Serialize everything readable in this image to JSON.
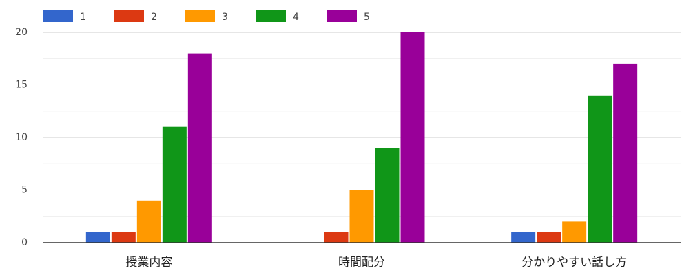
{
  "chart_data": {
    "type": "bar",
    "title": "",
    "xlabel": "",
    "ylabel": "",
    "categories": [
      "授業内容",
      "時間配分",
      "分かりやすい話し方"
    ],
    "series": [
      {
        "name": "1",
        "color": "#3366cc",
        "values": [
          1,
          0,
          1
        ]
      },
      {
        "name": "2",
        "color": "#dc3912",
        "values": [
          1,
          1,
          1
        ]
      },
      {
        "name": "3",
        "color": "#ff9900",
        "values": [
          4,
          5,
          2
        ]
      },
      {
        "name": "4",
        "color": "#109618",
        "values": [
          11,
          9,
          14
        ]
      },
      {
        "name": "5",
        "color": "#990099",
        "values": [
          18,
          20,
          17
        ]
      }
    ],
    "ylim": [
      0,
      20
    ],
    "yticks": [
      0,
      5,
      10,
      15,
      20
    ],
    "grid": true,
    "legend_position": "top-left"
  }
}
